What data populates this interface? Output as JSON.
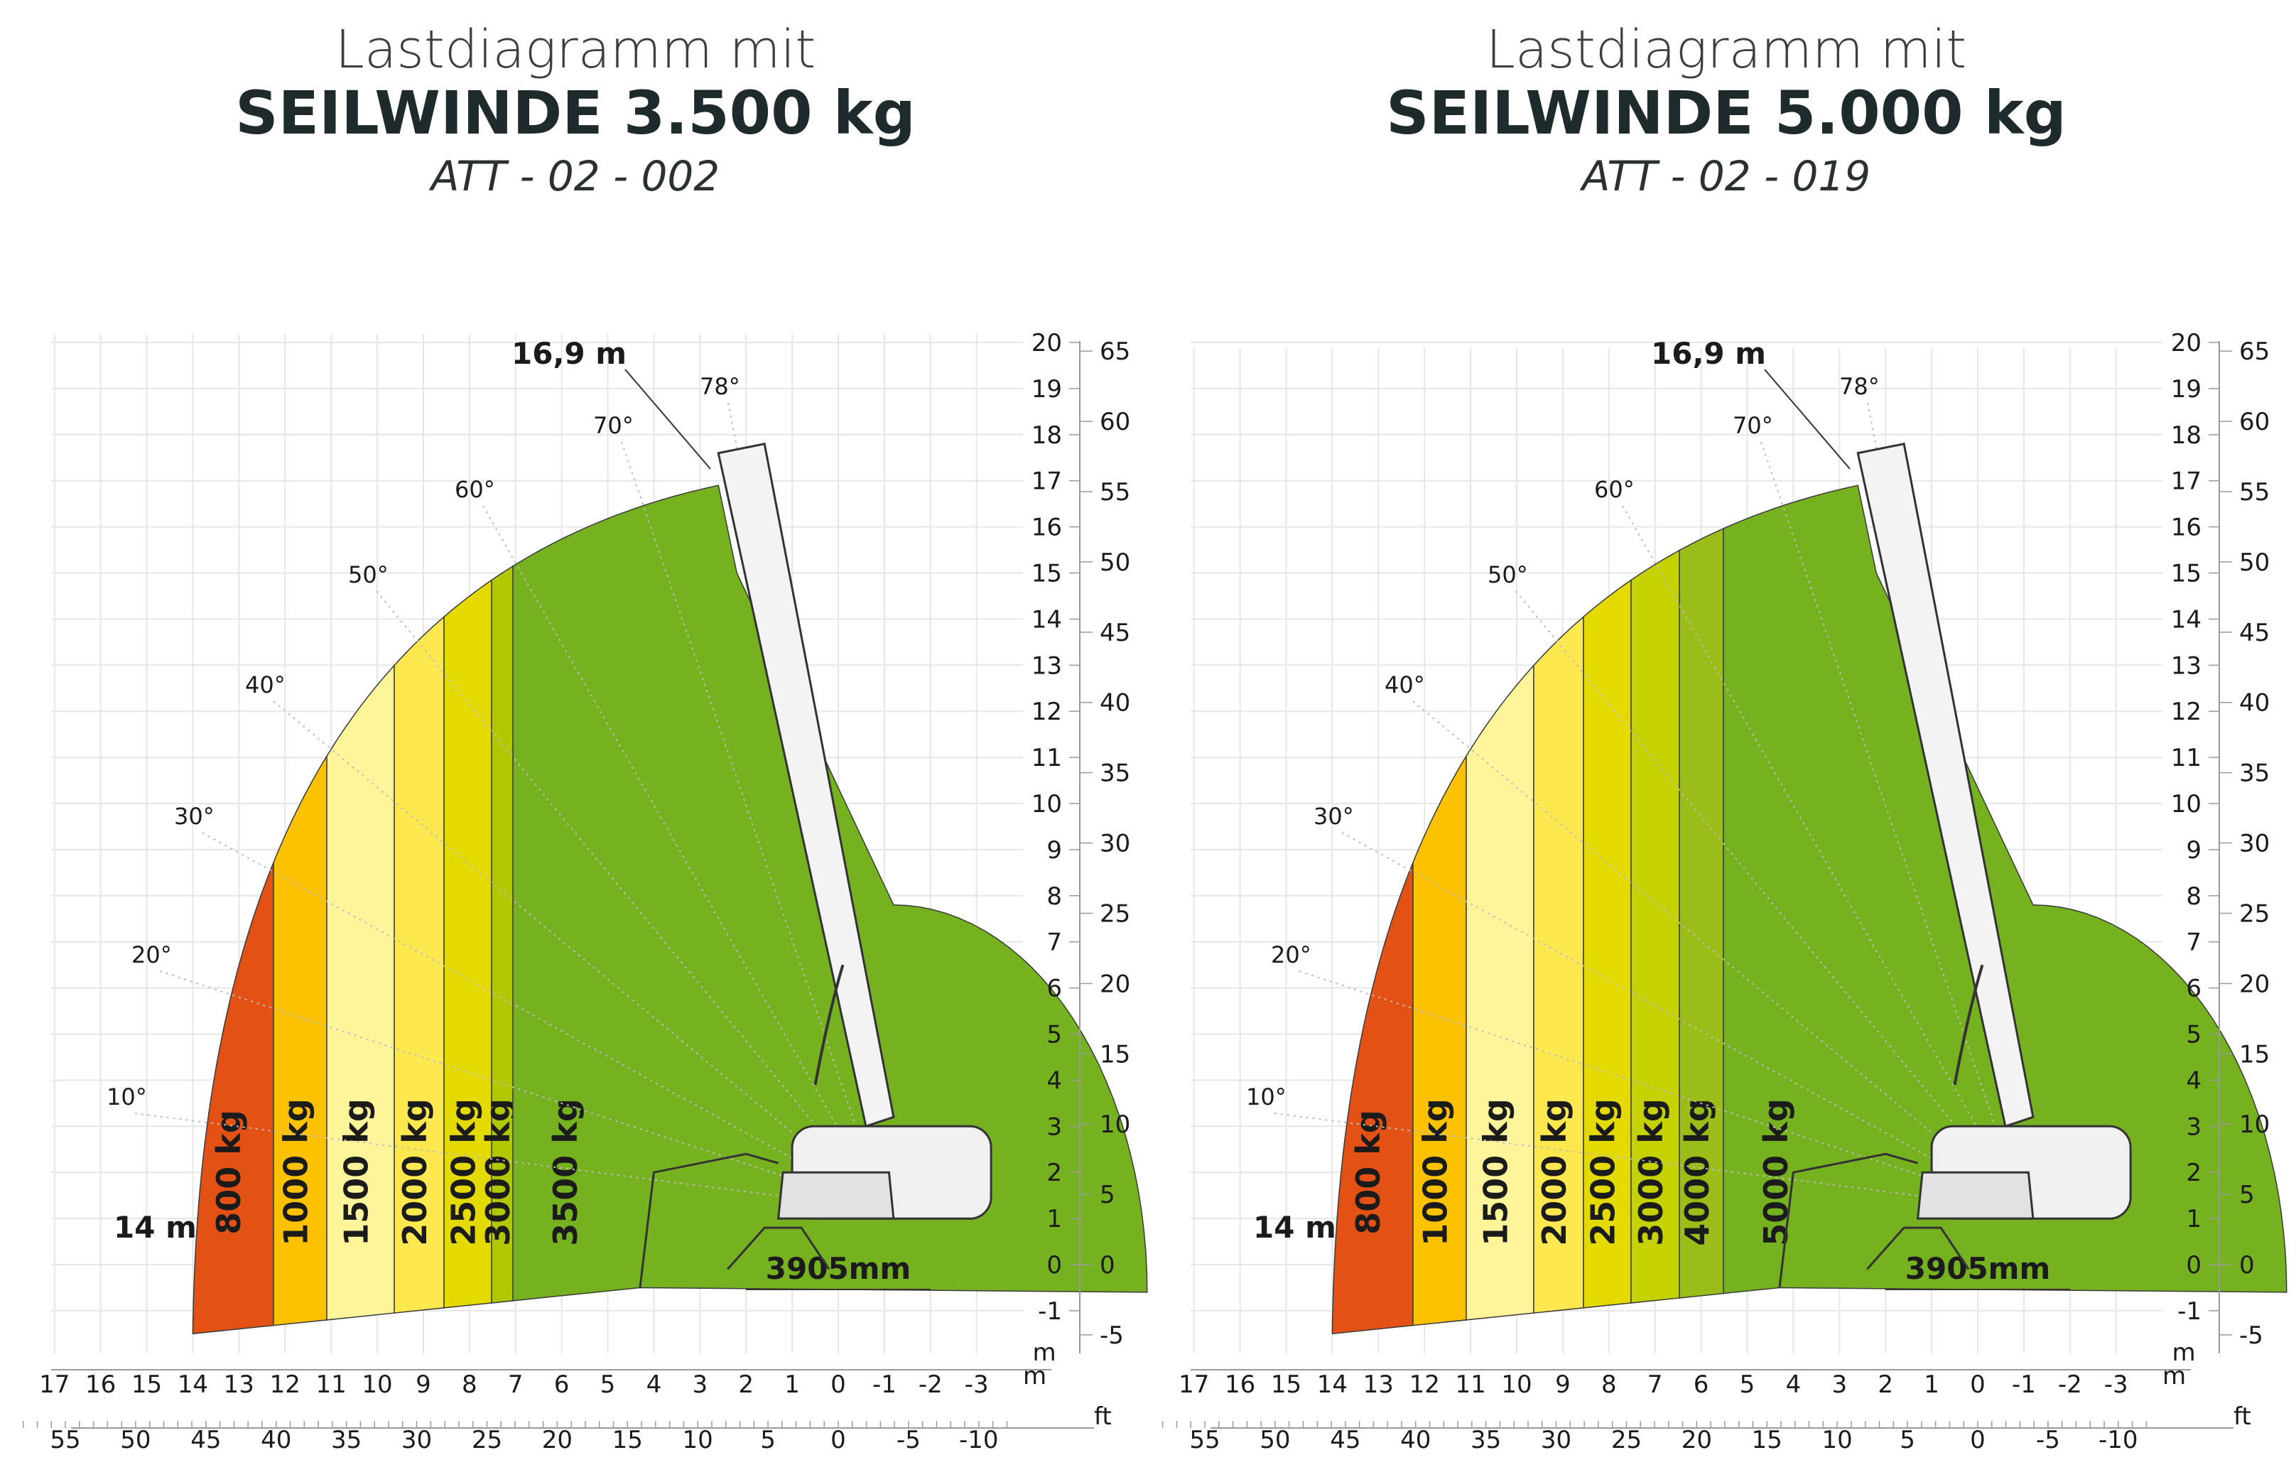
{
  "chart_data": [
    {
      "type": "area",
      "title": "Lastdiagramm mit",
      "subtitle": "SEILWINDE 3.500 kg",
      "code": "ATT - 02 - 002",
      "x_unit_m": "m",
      "x_unit_ft": "ft",
      "y_unit_m": "m",
      "x_ticks_m": [
        "17",
        "16",
        "15",
        "14",
        "13",
        "12",
        "11",
        "10",
        "9",
        "8",
        "7",
        "6",
        "5",
        "4",
        "3",
        "2",
        "1",
        "0",
        "-1",
        "-2",
        "-3"
      ],
      "x_ticks_ft": [
        "55",
        "50",
        "45",
        "40",
        "35",
        "30",
        "25",
        "20",
        "15",
        "10",
        "5",
        "0",
        "-5",
        "-10"
      ],
      "y_ticks_m": [
        "20",
        "19",
        "18",
        "17",
        "16",
        "15",
        "14",
        "13",
        "12",
        "11",
        "10",
        "9",
        "8",
        "7",
        "6",
        "5",
        "4",
        "3",
        "2",
        "1",
        "0",
        "-1"
      ],
      "y_ticks_ft": [
        "65",
        "60",
        "55",
        "50",
        "45",
        "40",
        "35",
        "30",
        "25",
        "20",
        "15",
        "10",
        "5",
        "0",
        "-5"
      ],
      "angles": [
        "78°",
        "70°",
        "60°",
        "50°",
        "40°",
        "30°",
        "20°",
        "10°"
      ],
      "max_height": "16,9 m",
      "max_reach": "14 m",
      "track_width": "3905mm",
      "zones": [
        {
          "label": "800 kg",
          "color": "#e35214"
        },
        {
          "label": "1000 kg",
          "color": "#fcc200"
        },
        {
          "label": "1500 kg",
          "color": "#fef59b"
        },
        {
          "label": "2000 kg",
          "color": "#fde94f"
        },
        {
          "label": "2500 kg",
          "color": "#e4da00"
        },
        {
          "label": "3000 kg",
          "color": "#b1c800"
        },
        {
          "label": "3500 kg",
          "color": "#76b11f"
        }
      ]
    },
    {
      "type": "area",
      "title": "Lastdiagramm mit",
      "subtitle": "SEILWINDE 5.000 kg",
      "code": "ATT - 02 - 019",
      "x_unit_m": "m",
      "x_unit_ft": "ft",
      "y_unit_m": "m",
      "x_ticks_m": [
        "17",
        "16",
        "15",
        "14",
        "13",
        "12",
        "11",
        "10",
        "9",
        "8",
        "7",
        "6",
        "5",
        "4",
        "3",
        "2",
        "1",
        "0",
        "-1",
        "-2",
        "-3"
      ],
      "x_ticks_ft": [
        "55",
        "50",
        "45",
        "40",
        "35",
        "30",
        "25",
        "20",
        "15",
        "10",
        "5",
        "0",
        "-5",
        "-10"
      ],
      "y_ticks_m": [
        "20",
        "19",
        "18",
        "17",
        "16",
        "15",
        "14",
        "13",
        "12",
        "11",
        "10",
        "9",
        "8",
        "7",
        "6",
        "5",
        "4",
        "3",
        "2",
        "1",
        "0",
        "-1"
      ],
      "y_ticks_ft": [
        "65",
        "60",
        "55",
        "50",
        "45",
        "40",
        "35",
        "30",
        "25",
        "20",
        "15",
        "10",
        "5",
        "0",
        "-5"
      ],
      "angles": [
        "78°",
        "70°",
        "60°",
        "50°",
        "40°",
        "30°",
        "20°",
        "10°"
      ],
      "max_height": "16,9 m",
      "max_reach": "14 m",
      "track_width": "3905mm",
      "zones": [
        {
          "label": "800 kg",
          "color": "#e35214"
        },
        {
          "label": "1000 kg",
          "color": "#fcc200"
        },
        {
          "label": "1500 kg",
          "color": "#fef59b"
        },
        {
          "label": "2000 kg",
          "color": "#fde94f"
        },
        {
          "label": "2500 kg",
          "color": "#e4da00"
        },
        {
          "label": "3000 kg",
          "color": "#c5d200"
        },
        {
          "label": "4000 kg",
          "color": "#9bbd18"
        },
        {
          "label": "5000 kg",
          "color": "#76b11f"
        }
      ]
    }
  ]
}
